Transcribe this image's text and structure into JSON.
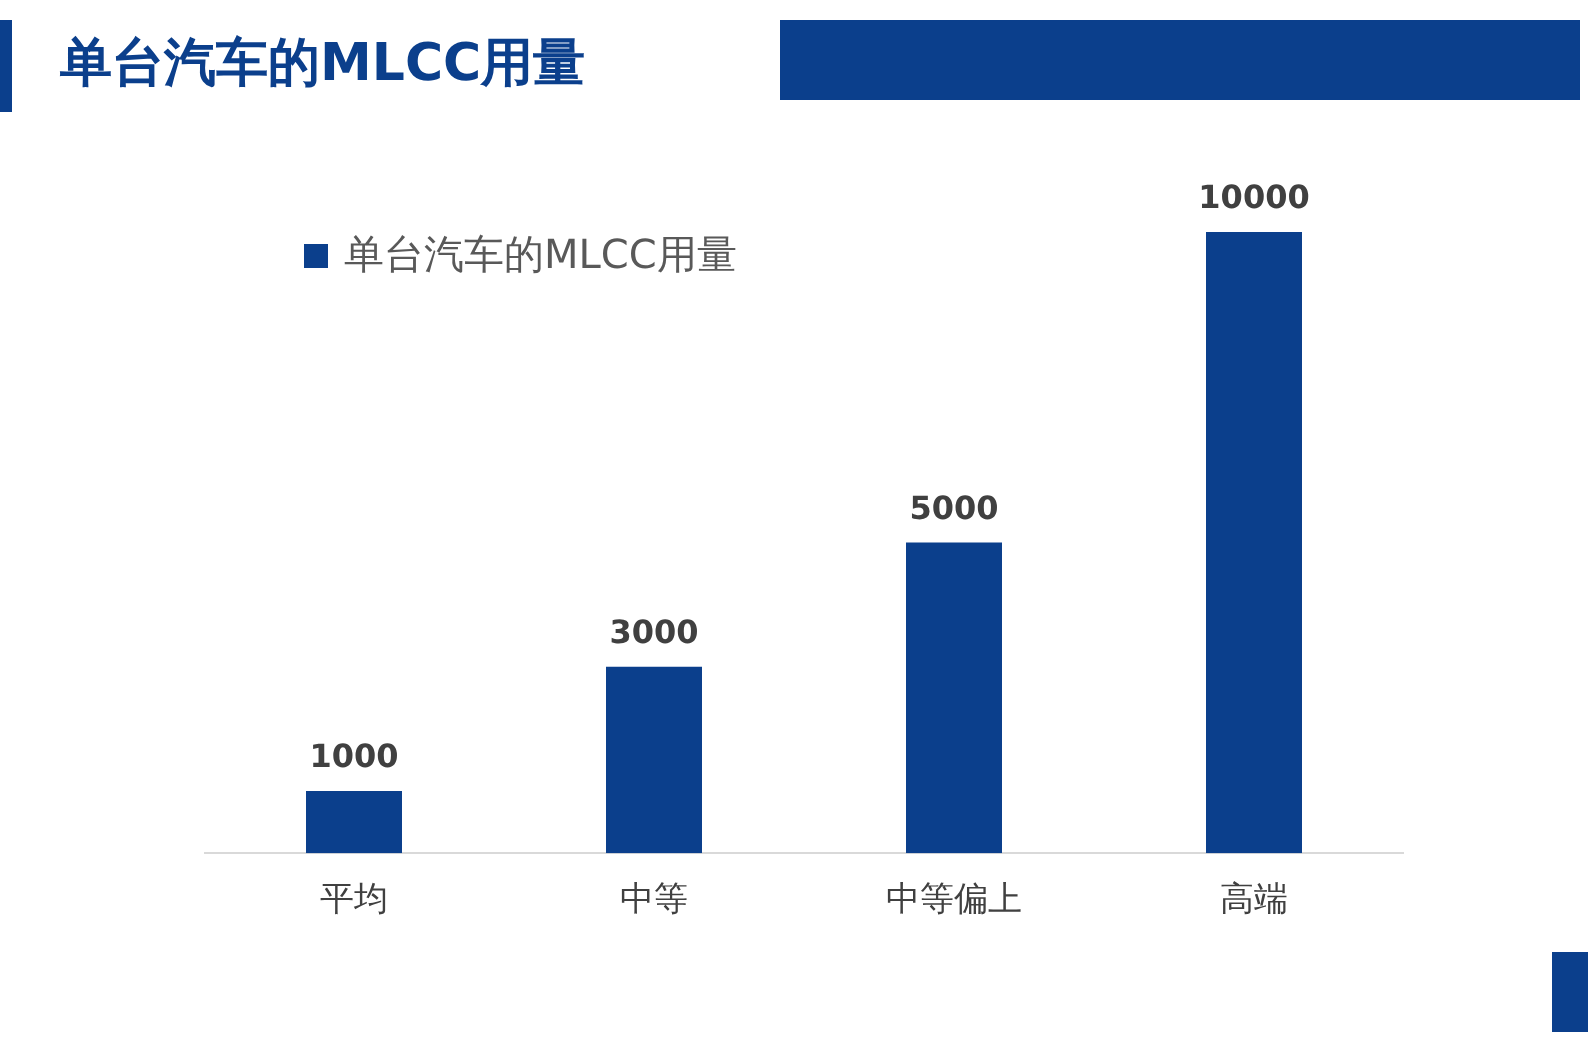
{
  "chart_data": {
    "type": "bar",
    "title": "单台汽车的MLCC用量",
    "categories": [
      "平均",
      "中等",
      "中等偏上",
      "高端"
    ],
    "series": [
      {
        "name": "单台汽车的MLCC用量",
        "color": "#0b3f8c",
        "values": [
          1000,
          3000,
          5000,
          10000
        ]
      }
    ],
    "data_labels": true,
    "legend": "top left",
    "grid": false
  }
}
